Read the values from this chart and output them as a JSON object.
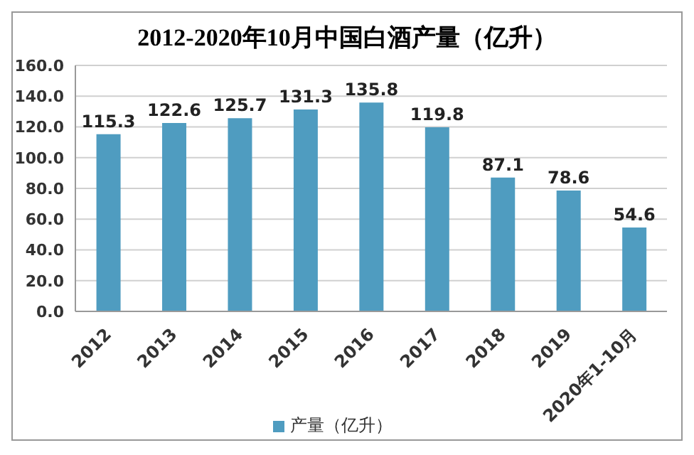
{
  "chart_data": {
    "type": "bar",
    "title": "2012-2020年10月中国白酒产量（亿升）",
    "categories": [
      "2012",
      "2013",
      "2014",
      "2015",
      "2016",
      "2017",
      "2018",
      "2019",
      "2020年1-10月"
    ],
    "series": [
      {
        "name": "产量（亿升）",
        "color": "#4f9cc0",
        "values": [
          115.3,
          122.6,
          125.7,
          131.3,
          135.8,
          119.8,
          87.1,
          78.6,
          54.6
        ]
      }
    ],
    "ylim": [
      0,
      160
    ],
    "yticks": [
      {
        "value": 0,
        "label": "0.0"
      },
      {
        "value": 20,
        "label": "20.0"
      },
      {
        "value": 40,
        "label": "40.0"
      },
      {
        "value": 60,
        "label": "60.0"
      },
      {
        "value": 80,
        "label": "80.0"
      },
      {
        "value": 100,
        "label": "100.0"
      },
      {
        "value": 120,
        "label": "120.0"
      },
      {
        "value": 140,
        "label": "140.0"
      },
      {
        "value": 160,
        "label": "160.0"
      }
    ],
    "grid": "y",
    "legend": "bottom",
    "data_labels": true
  }
}
